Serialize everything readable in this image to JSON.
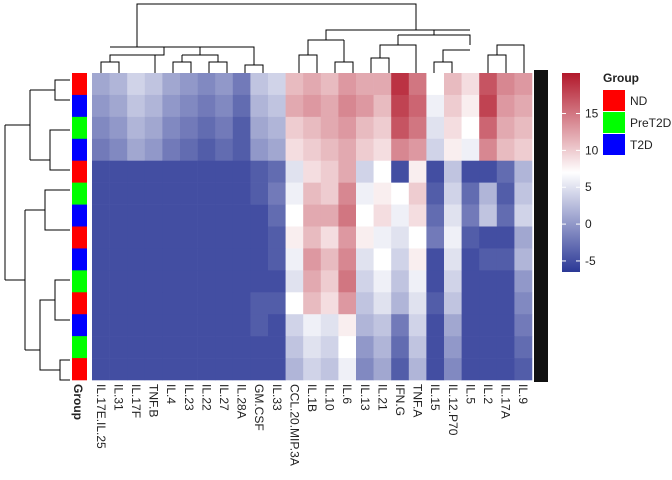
{
  "chart_data": {
    "type": "heatmap",
    "categories": [
      "IL.17E.IL.25",
      "IL.31",
      "IL.17F",
      "TNF.B",
      "IL.4",
      "IL.23",
      "IL.22",
      "IL.27",
      "IL.28A",
      "GM.CSF",
      "IL.33",
      "CCL.20.MIP.3A",
      "IL.1B",
      "IL.10",
      "IL.6",
      "IL.13",
      "IL.21",
      "IFN.G",
      "TNF.A",
      "IL.15",
      "IL.12.P70",
      "IL.5",
      "IL.2",
      "IL.17A",
      "IL.9"
    ],
    "values": [
      [
        1,
        2,
        4,
        3,
        1,
        0,
        -1,
        0,
        -2,
        3,
        4,
        11,
        12,
        11,
        13,
        12,
        12,
        19,
        15,
        7,
        11,
        9,
        17,
        14,
        13
      ],
      [
        0,
        1,
        3,
        2,
        0,
        -1,
        -2,
        -1,
        -3,
        2,
        3,
        12,
        13,
        12,
        14,
        13,
        11,
        18,
        16,
        6,
        10,
        8,
        18,
        13,
        12
      ],
      [
        -1,
        0,
        2,
        1,
        -1,
        -2,
        -3,
        -2,
        -4,
        1,
        2,
        10,
        11,
        12,
        13,
        11,
        10,
        17,
        15,
        5,
        9,
        7,
        16,
        12,
        11
      ],
      [
        -2,
        -1,
        1,
        0,
        -2,
        -3,
        -4,
        -3,
        -4,
        0,
        1,
        9,
        10,
        11,
        12,
        10,
        9,
        14,
        13,
        4,
        8,
        6,
        14,
        11,
        10
      ],
      [
        -5,
        -5,
        -5,
        -5,
        -5,
        -5,
        -5,
        -5,
        -5,
        -4,
        -3,
        5,
        9,
        10,
        12,
        4,
        7,
        -5,
        8,
        -5,
        3,
        -5,
        -5,
        -3,
        2
      ],
      [
        -5,
        -5,
        -5,
        -5,
        -5,
        -5,
        -5,
        -5,
        -5,
        -4,
        -2,
        6,
        11,
        10,
        14,
        6,
        8,
        7,
        10,
        -4,
        4,
        -3,
        2,
        -4,
        3
      ],
      [
        -5,
        -5,
        -5,
        -5,
        -5,
        -5,
        -5,
        -5,
        -5,
        -5,
        -3,
        7,
        12,
        12,
        15,
        7,
        9,
        6,
        9,
        -3,
        5,
        -2,
        3,
        -3,
        4
      ],
      [
        -5,
        -5,
        -5,
        -5,
        -5,
        -5,
        -5,
        -5,
        -5,
        -5,
        -4,
        8,
        11,
        9,
        13,
        8,
        6,
        5,
        7,
        -2,
        6,
        -4,
        -5,
        -5,
        1
      ],
      [
        -5,
        -5,
        -5,
        -5,
        -5,
        -5,
        -5,
        -5,
        -5,
        -5,
        -4,
        6,
        13,
        11,
        14,
        5,
        7,
        4,
        8,
        -5,
        5,
        -5,
        -4,
        -4,
        2
      ],
      [
        -5,
        -5,
        -5,
        -5,
        -5,
        -5,
        -5,
        -5,
        -5,
        -5,
        -5,
        5,
        12,
        10,
        15,
        4,
        6,
        3,
        6,
        -5,
        4,
        -5,
        -5,
        -5,
        0
      ],
      [
        -5,
        -5,
        -5,
        -5,
        -5,
        -5,
        -5,
        -5,
        -5,
        -4,
        -4,
        7,
        11,
        9,
        13,
        3,
        5,
        2,
        5,
        -4,
        3,
        -5,
        -5,
        -5,
        -1
      ],
      [
        -5,
        -5,
        -5,
        -5,
        -5,
        -5,
        -5,
        -5,
        -5,
        -4,
        -5,
        4,
        6,
        5,
        8,
        2,
        3,
        -2,
        4,
        -5,
        1,
        -5,
        -5,
        -5,
        -2
      ],
      [
        -5,
        -5,
        -5,
        -5,
        -5,
        -5,
        -5,
        -5,
        -5,
        -5,
        -5,
        3,
        5,
        4,
        7,
        0,
        2,
        -3,
        3,
        -5,
        0,
        -5,
        -5,
        -5,
        -3
      ],
      [
        -5,
        -5,
        -5,
        -5,
        -5,
        -5,
        -5,
        -5,
        -5,
        -5,
        -5,
        2,
        4,
        3,
        6,
        -1,
        1,
        -4,
        2,
        -5,
        -1,
        -5,
        -5,
        -5,
        -4
      ]
    ],
    "colors": [
      "#2b3896",
      "#ffffff",
      "#b2182b"
    ],
    "clim": [
      -6.5,
      20.5
    ],
    "cticks": [
      -5,
      0,
      5,
      10,
      15
    ],
    "annotation_title": "Group",
    "groups": [
      {
        "name": "ND",
        "color": "#ff0000"
      },
      {
        "name": "PreT2D",
        "color": "#00ff00"
      },
      {
        "name": "T2D",
        "color": "#0000ff"
      }
    ],
    "row_groups": [
      "ND",
      "T2D",
      "PreT2D",
      "T2D",
      "ND",
      "PreT2D",
      "T2D",
      "ND",
      "T2D",
      "PreT2D",
      "ND",
      "T2D",
      "PreT2D",
      "ND"
    ]
  }
}
